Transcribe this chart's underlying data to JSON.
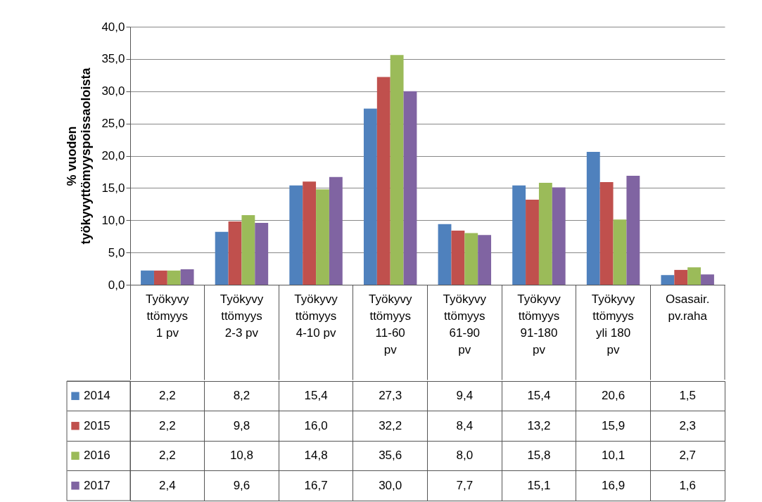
{
  "chart_data": {
    "type": "bar",
    "categories": [
      "Työkyvyttömyys 1 pv",
      "Työkyvyttömyys 2-3 pv",
      "Työkyvyttömyys 4-10 pv",
      "Työkyvyttömyys 11-60 pv",
      "Työkyvyttömyys 61-90 pv",
      "Työkyvyttömyys 91-180 pv",
      "Työkyvyttömyys yli 180 pv",
      "Osasair. pv.raha"
    ],
    "series": [
      {
        "name": "2014",
        "color": "#4f81bd",
        "values": [
          2.2,
          8.2,
          15.4,
          27.3,
          9.4,
          15.4,
          20.6,
          1.5
        ],
        "value_labels": [
          "2,2",
          "8,2",
          "15,4",
          "27,3",
          "9,4",
          "15,4",
          "20,6",
          "1,5"
        ]
      },
      {
        "name": "2015",
        "color": "#c0504d",
        "values": [
          2.2,
          9.8,
          16.0,
          32.2,
          8.4,
          13.2,
          15.9,
          2.3
        ],
        "value_labels": [
          "2,2",
          "9,8",
          "16,0",
          "32,2",
          "8,4",
          "13,2",
          "15,9",
          "2,3"
        ]
      },
      {
        "name": "2016",
        "color": "#9bbb59",
        "values": [
          2.2,
          10.8,
          14.8,
          35.6,
          8.0,
          15.8,
          10.1,
          2.7
        ],
        "value_labels": [
          "2,2",
          "10,8",
          "14,8",
          "35,6",
          "8,0",
          "15,8",
          "10,1",
          "2,7"
        ]
      },
      {
        "name": "2017",
        "color": "#8064a2",
        "values": [
          2.4,
          9.6,
          16.7,
          30.0,
          7.7,
          15.1,
          16.9,
          1.6
        ],
        "value_labels": [
          "2,4",
          "9,6",
          "16,7",
          "30,0",
          "7,7",
          "15,1",
          "16,9",
          "1,6"
        ]
      }
    ],
    "ylabel": "% vuoden työkyvyttömyyspoissaoloista",
    "ylim": [
      0,
      40
    ],
    "yticks": [
      {
        "value": 0,
        "label": "0,0"
      },
      {
        "value": 5,
        "label": "5,0"
      },
      {
        "value": 10,
        "label": "10,0"
      },
      {
        "value": 15,
        "label": "15,0"
      },
      {
        "value": 20,
        "label": "20,0"
      },
      {
        "value": 25,
        "label": "25,0"
      },
      {
        "value": 30,
        "label": "30,0"
      },
      {
        "value": 35,
        "label": "35,0"
      },
      {
        "value": 40,
        "label": "40,0"
      }
    ],
    "grid": "y",
    "legend": "bottom"
  }
}
